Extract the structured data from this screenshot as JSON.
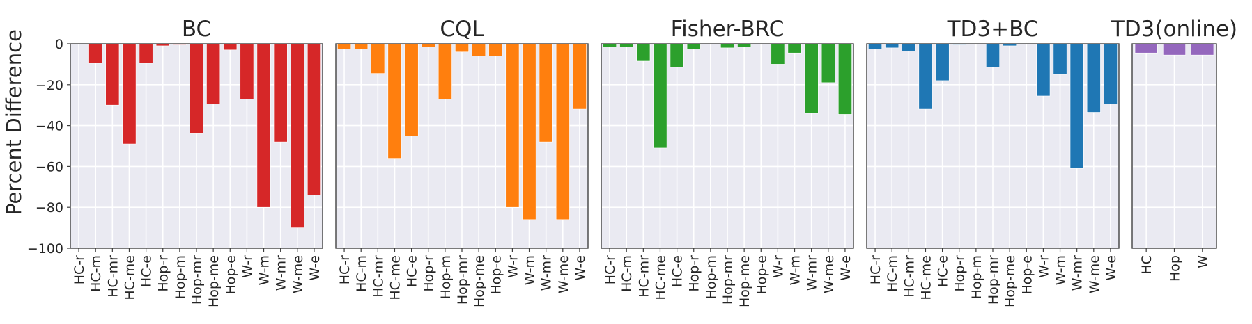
{
  "chart_data": {
    "type": "bar",
    "ylabel": "Percent Difference",
    "ylim": [
      -100,
      0
    ],
    "yticks": [
      0,
      -20,
      -40,
      -60,
      -80,
      -100
    ],
    "ytick_labels": [
      "0",
      "−20",
      "−40",
      "−60",
      "−80",
      "−100"
    ],
    "grid": true,
    "panels": [
      {
        "title": "BC",
        "color": "#D62728",
        "categories": [
          "HC-r",
          "HC-m",
          "HC-mr",
          "HC-me",
          "HC-e",
          "Hop-r",
          "Hop-m",
          "Hop-mr",
          "Hop-me",
          "Hop-e",
          "W-r",
          "W-m",
          "W-mr",
          "W-me",
          "W-e"
        ],
        "values": [
          0,
          -9.5,
          -30,
          -49,
          -9.5,
          -1,
          -0.5,
          -44,
          -29.5,
          -3,
          -27,
          -80,
          -48,
          -90,
          -74
        ]
      },
      {
        "title": "CQL",
        "color": "#FF7F0E",
        "categories": [
          "HC-r",
          "HC-m",
          "HC-mr",
          "HC-me",
          "HC-e",
          "Hop-r",
          "Hop-m",
          "Hop-mr",
          "Hop-me",
          "Hop-e",
          "W-r",
          "W-m",
          "W-mr",
          "W-me",
          "W-e"
        ],
        "values": [
          -2.5,
          -2.5,
          -14.5,
          -56,
          -45,
          -1.5,
          -27,
          -4,
          -6,
          -6,
          -80,
          -86,
          -48,
          -86,
          -32
        ]
      },
      {
        "title": "Fisher-BRC",
        "color": "#2CA02C",
        "categories": [
          "HC-r",
          "HC-m",
          "HC-mr",
          "HC-me",
          "HC-e",
          "Hop-r",
          "Hop-m",
          "Hop-mr",
          "Hop-me",
          "Hop-e",
          "W-r",
          "W-m",
          "W-mr",
          "W-me",
          "W-e"
        ],
        "values": [
          -1.5,
          -1.5,
          -8.5,
          -51,
          -11.5,
          -2.5,
          0,
          -2,
          -1.5,
          0,
          -10,
          -4.5,
          -34,
          -19,
          -34.5
        ]
      },
      {
        "title": "TD3+BC",
        "color": "#1F77B4",
        "categories": [
          "HC-r",
          "HC-m",
          "HC-mr",
          "HC-me",
          "HC-e",
          "Hop-r",
          "Hop-m",
          "Hop-mr",
          "Hop-me",
          "Hop-e",
          "W-r",
          "W-m",
          "W-mr",
          "W-me",
          "W-e"
        ],
        "values": [
          -2.5,
          -2,
          -3.5,
          -32,
          -18,
          -0.5,
          0,
          -11.5,
          -1,
          0,
          -25.5,
          -15,
          -61,
          -33.5,
          -29.5
        ]
      },
      {
        "title": "TD3(online)",
        "color": "#9467BD",
        "categories": [
          "HC",
          "Hop",
          "W"
        ],
        "values": [
          -4.5,
          -5.5,
          -5.5
        ]
      }
    ]
  }
}
